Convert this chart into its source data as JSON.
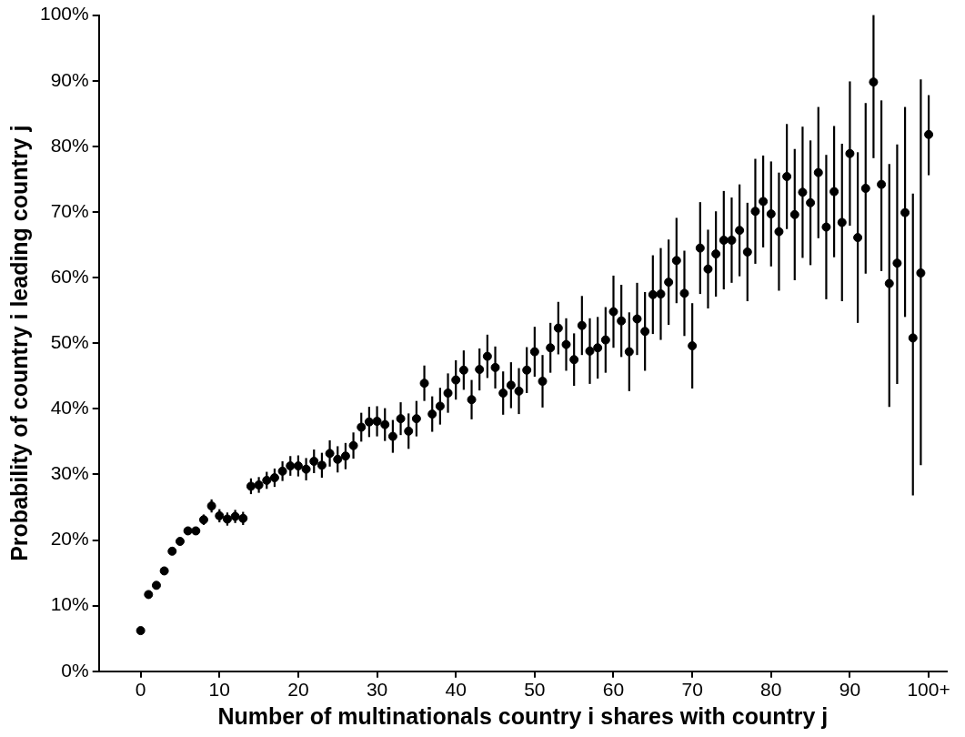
{
  "chart_data": {
    "type": "scatter",
    "xlabel": "Number of multinationals country i shares with country j",
    "ylabel": "Probability of country i leading country j",
    "x": [
      0,
      1,
      2,
      3,
      4,
      5,
      6,
      7,
      8,
      9,
      10,
      11,
      12,
      13,
      14,
      15,
      16,
      17,
      18,
      19,
      20,
      21,
      22,
      23,
      24,
      25,
      26,
      27,
      28,
      29,
      30,
      31,
      32,
      33,
      34,
      35,
      36,
      37,
      38,
      39,
      40,
      41,
      42,
      43,
      44,
      45,
      46,
      47,
      48,
      49,
      50,
      51,
      52,
      53,
      54,
      55,
      56,
      57,
      58,
      59,
      60,
      61,
      62,
      63,
      64,
      65,
      66,
      67,
      68,
      69,
      70,
      71,
      72,
      73,
      74,
      75,
      76,
      77,
      78,
      79,
      80,
      81,
      82,
      83,
      84,
      85,
      86,
      87,
      88,
      89,
      90,
      91,
      92,
      93,
      94,
      95,
      96,
      97,
      98,
      99,
      100
    ],
    "values": [
      6.2,
      11.7,
      13.1,
      15.3,
      18.3,
      19.8,
      21.4,
      21.4,
      23.1,
      25.2,
      23.7,
      23.2,
      23.6,
      23.3,
      28.2,
      28.4,
      29.1,
      29.5,
      30.5,
      31.3,
      31.3,
      30.8,
      32.0,
      31.4,
      33.2,
      32.3,
      32.8,
      34.4,
      37.2,
      38.0,
      38.1,
      37.6,
      35.8,
      38.5,
      36.6,
      38.5,
      43.9,
      39.2,
      40.4,
      42.4,
      44.4,
      45.9,
      41.4,
      46.0,
      48.0,
      46.3,
      42.4,
      43.6,
      42.7,
      45.9,
      48.7,
      44.2,
      49.3,
      52.3,
      49.8,
      47.5,
      52.7,
      48.8,
      49.3,
      50.5,
      54.8,
      53.4,
      48.7,
      53.7,
      51.8,
      57.4,
      57.5,
      59.3,
      62.6,
      57.6,
      49.6,
      64.5,
      61.3,
      63.6,
      65.7,
      65.7,
      67.2,
      63.9,
      70.1,
      71.6,
      69.7,
      67.0,
      75.4,
      69.6,
      73.0,
      71.4,
      76.0,
      67.7,
      73.1,
      68.4,
      78.9,
      66.1,
      73.6,
      89.8,
      74.2,
      59.1,
      62.2,
      69.9,
      50.8,
      60.7,
      81.8
    ],
    "errors": [
      null,
      null,
      null,
      null,
      null,
      null,
      0.5,
      0.6,
      0.8,
      1,
      1,
      1,
      1,
      1,
      1.2,
      1.2,
      1.3,
      1.4,
      1.5,
      1.5,
      1.6,
      1.7,
      1.8,
      1.9,
      2,
      2,
      2,
      2,
      2.2,
      2.3,
      2.3,
      2.5,
      2.5,
      2.5,
      2.7,
      2.7,
      2.7,
      2.7,
      2.8,
      3,
      3,
      3,
      3,
      3.2,
      3.3,
      3.2,
      3.3,
      3.5,
      3.5,
      3.5,
      3.8,
      4,
      3.8,
      4,
      4,
      4,
      4.5,
      5,
      4.7,
      5,
      5.5,
      5.5,
      6,
      5.5,
      6,
      6,
      7,
      6.5,
      6.5,
      6.5,
      6.5,
      7,
      6,
      6.5,
      7.5,
      6.5,
      7,
      7.5,
      8,
      7,
      8,
      9,
      8,
      10,
      10,
      9.5,
      10,
      11,
      10,
      12,
      11,
      13,
      13,
      [
        78.2,
        100
      ],
      [
        61,
        87
      ],
      [
        40.3,
        77.3
      ],
      [
        43.8,
        80.3
      ],
      [
        54,
        86
      ],
      [
        26.8,
        72.8
      ],
      [
        31.4,
        90.2
      ],
      [
        75.6,
        87.8
      ]
    ],
    "color": "#000000",
    "marker": "circle",
    "grid": false,
    "xlim": [
      -5.3,
      102.3
    ],
    "xticks": [
      0,
      10,
      20,
      30,
      40,
      50,
      60,
      70,
      80,
      90,
      {
        "value": 100,
        "label": "100+"
      }
    ],
    "ylim": [
      0,
      100
    ],
    "yticks": [
      {
        "value": 0,
        "label": "0%"
      },
      {
        "value": 10,
        "label": "10%"
      },
      {
        "value": 20,
        "label": "20%"
      },
      {
        "value": 30,
        "label": "30%"
      },
      {
        "value": 40,
        "label": "40%"
      },
      {
        "value": 50,
        "label": "50%"
      },
      {
        "value": 60,
        "label": "60%"
      },
      {
        "value": 70,
        "label": "70%"
      },
      {
        "value": 80,
        "label": "80%"
      },
      {
        "value": 90,
        "label": "90%"
      },
      {
        "value": 100,
        "label": "100%"
      }
    ]
  }
}
